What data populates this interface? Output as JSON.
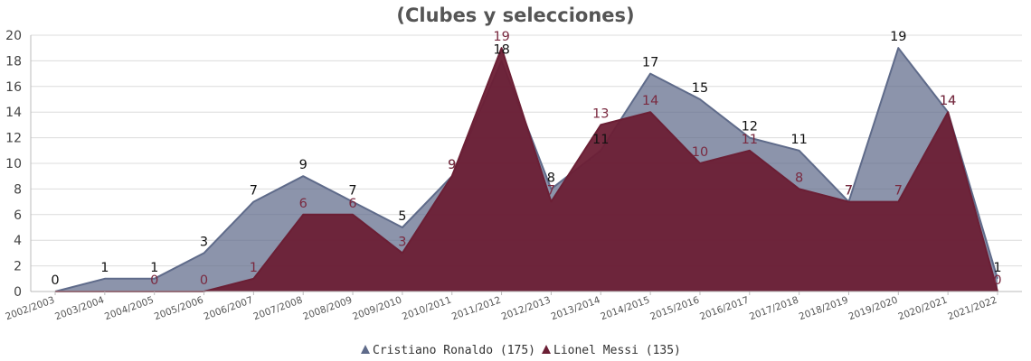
{
  "chart_data": {
    "type": "area",
    "title": "(Clubes y selecciones)",
    "xlabel": "",
    "ylabel": "",
    "categories": [
      "2002/2003",
      "2003/2004",
      "2004/2005",
      "2005/2006",
      "2006/2007",
      "2007/2008",
      "2008/2009",
      "2009/2010",
      "2010/2011",
      "2011/2012",
      "2012/2013",
      "2013/2014",
      "2014/2015",
      "2015/2016",
      "2016/2017",
      "2017/2018",
      "2018/2019",
      "2019/2020",
      "2020/2021",
      "2021/2022"
    ],
    "ylim": [
      0,
      20
    ],
    "yticks": [
      0,
      2,
      4,
      6,
      8,
      10,
      12,
      14,
      16,
      18,
      20
    ],
    "grid": true,
    "legend_position": "bottom",
    "series": [
      {
        "name": "Cristiano Ronaldo (175)",
        "color": "#5f6b8a",
        "label_color": "#111111",
        "values": [
          0,
          1,
          1,
          3,
          7,
          9,
          7,
          5,
          9,
          18,
          8,
          11,
          17,
          15,
          12,
          11,
          7,
          19,
          14,
          1
        ],
        "labels": [
          "0",
          "1",
          "1",
          "3",
          "7",
          "9",
          "7",
          "5",
          "9",
          "18",
          "8",
          "11",
          "17",
          "15",
          "12",
          "11",
          "7",
          "19",
          "14",
          "1"
        ]
      },
      {
        "name": "Lionel Messi (135)",
        "color": "#6b1f35",
        "label_color": "#7a2a40",
        "values": [
          0,
          0,
          0,
          0,
          1,
          6,
          6,
          3,
          9,
          19,
          7,
          13,
          14,
          10,
          11,
          8,
          7,
          7,
          14,
          0
        ],
        "labels": [
          "",
          "",
          "0",
          "0",
          "1",
          "6",
          "6",
          "3",
          "9",
          "19",
          "7",
          "13",
          "14",
          "10",
          "11",
          "8",
          "7",
          "7",
          "14",
          "0"
        ]
      }
    ]
  }
}
